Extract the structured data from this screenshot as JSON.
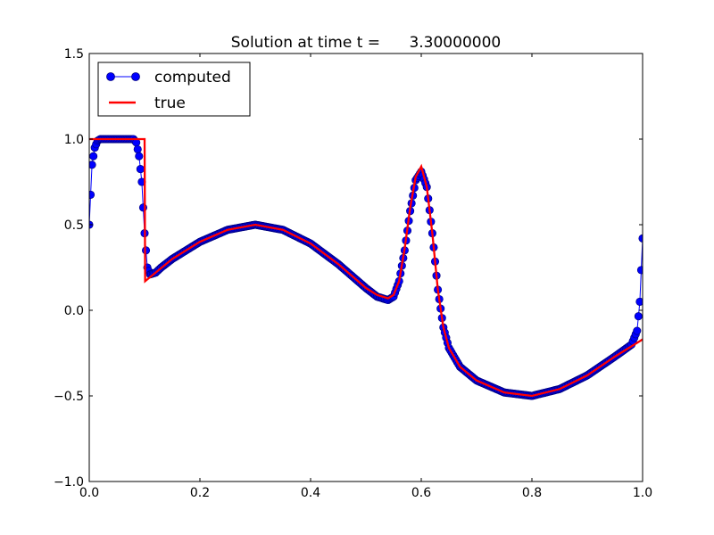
{
  "chart_data": {
    "type": "line",
    "title": "Solution at time t =      3.30000000",
    "xlabel": "",
    "ylabel": "",
    "xlim": [
      0.0,
      1.0
    ],
    "ylim": [
      -1.0,
      1.5
    ],
    "x_ticks": [
      0.0,
      0.2,
      0.4,
      0.6,
      0.8,
      1.0
    ],
    "x_tick_labels": [
      "0.0",
      "0.2",
      "0.4",
      "0.6",
      "0.8",
      "1.0"
    ],
    "y_ticks": [
      -1.0,
      -0.5,
      0.0,
      0.5,
      1.0,
      1.5
    ],
    "y_tick_labels": [
      "−1.0",
      "−0.5",
      "0.0",
      "0.5",
      "1.0",
      "1.5"
    ],
    "grid": false,
    "legend": {
      "placement": "top-left",
      "entries": [
        {
          "label": "computed",
          "color": "#0000ff",
          "style": "line-with-circle-markers"
        },
        {
          "label": "true",
          "color": "#ff0000",
          "style": "line"
        }
      ]
    },
    "series": [
      {
        "name": "computed",
        "color": "#0000ff",
        "marker_edge_color": "#000080",
        "x": [
          0.0,
          0.005,
          0.01,
          0.015,
          0.02,
          0.03,
          0.04,
          0.05,
          0.06,
          0.07,
          0.08,
          0.085,
          0.09,
          0.095,
          0.1,
          0.105,
          0.11,
          0.12,
          0.13,
          0.15,
          0.2,
          0.25,
          0.3,
          0.35,
          0.4,
          0.45,
          0.5,
          0.52,
          0.54,
          0.55,
          0.56,
          0.57,
          0.58,
          0.59,
          0.6,
          0.61,
          0.62,
          0.63,
          0.64,
          0.65,
          0.67,
          0.7,
          0.75,
          0.8,
          0.85,
          0.9,
          0.95,
          0.98,
          0.99,
          0.995,
          1.0
        ],
        "y": [
          0.5,
          0.85,
          0.95,
          0.99,
          1.0,
          1.0,
          1.0,
          1.0,
          1.0,
          1.0,
          1.0,
          0.98,
          0.9,
          0.75,
          0.45,
          0.25,
          0.21,
          0.22,
          0.25,
          0.3,
          0.4,
          0.47,
          0.5,
          0.47,
          0.39,
          0.27,
          0.13,
          0.08,
          0.06,
          0.08,
          0.17,
          0.35,
          0.58,
          0.76,
          0.81,
          0.72,
          0.45,
          0.12,
          -0.1,
          -0.22,
          -0.33,
          -0.41,
          -0.48,
          -0.5,
          -0.46,
          -0.38,
          -0.27,
          -0.2,
          -0.12,
          0.05,
          0.42
        ]
      },
      {
        "name": "true",
        "color": "#ff0000",
        "x": [
          0.0,
          0.099,
          0.1,
          0.101,
          0.15,
          0.2,
          0.25,
          0.3,
          0.35,
          0.4,
          0.45,
          0.5,
          0.52,
          0.54,
          0.55,
          0.56,
          0.57,
          0.58,
          0.59,
          0.6,
          0.61,
          0.62,
          0.63,
          0.64,
          0.65,
          0.67,
          0.7,
          0.75,
          0.8,
          0.85,
          0.9,
          0.95,
          1.0
        ],
        "y": [
          1.0,
          1.0,
          1.0,
          0.17,
          0.3,
          0.4,
          0.47,
          0.5,
          0.47,
          0.39,
          0.27,
          0.13,
          0.09,
          0.07,
          0.09,
          0.17,
          0.36,
          0.6,
          0.78,
          0.84,
          0.72,
          0.45,
          0.12,
          -0.1,
          -0.22,
          -0.33,
          -0.41,
          -0.48,
          -0.5,
          -0.46,
          -0.38,
          -0.27,
          -0.17
        ]
      }
    ]
  }
}
